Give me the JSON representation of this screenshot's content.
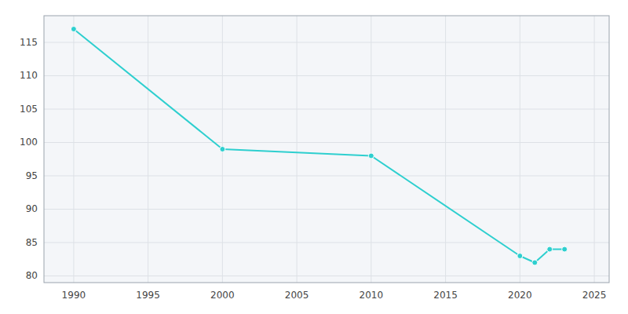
{
  "chart_data": {
    "type": "line",
    "x": [
      1990,
      2000,
      2010,
      2020,
      2021,
      2022,
      2023
    ],
    "values": [
      117,
      99,
      98,
      83,
      82,
      84,
      84
    ],
    "color": "#2ECFCF",
    "marker": "circle",
    "xlim": [
      1988,
      2026
    ],
    "ylim": [
      79,
      119
    ],
    "xticks": [
      1990,
      1995,
      2000,
      2005,
      2010,
      2015,
      2020,
      2025
    ],
    "yticks": [
      80,
      85,
      90,
      95,
      100,
      105,
      110,
      115
    ],
    "grid": true
  }
}
